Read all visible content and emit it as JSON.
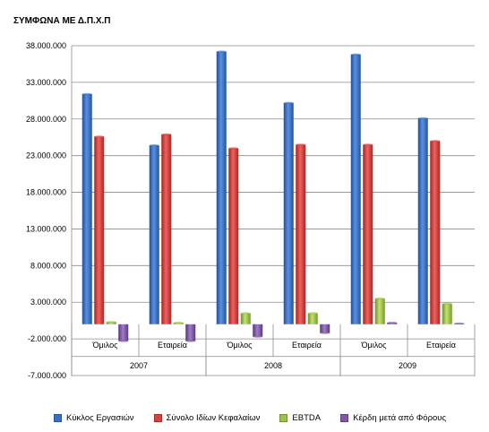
{
  "title": "ΣΥΜΦΩΝΑ ΜΕ Δ.Π.Χ.Π",
  "chart_data": {
    "type": "bar",
    "title": "ΣΥΜΦΩΝΑ ΜΕ Δ.Π.Χ.Π",
    "categories": [
      "Όμιλος",
      "Εταιρεία",
      "Όμιλος",
      "Εταιρεία",
      "Όμιλος",
      "Εταιρεία"
    ],
    "groups": [
      {
        "label": "2007",
        "span": [
          0,
          1
        ]
      },
      {
        "label": "2008",
        "span": [
          2,
          3
        ]
      },
      {
        "label": "2009",
        "span": [
          4,
          5
        ]
      }
    ],
    "series": [
      {
        "name": "Κύκλος Εργασιών",
        "color": "#3a6fc4",
        "values": [
          31400000,
          24400000,
          37200000,
          30200000,
          36800000,
          28100000
        ]
      },
      {
        "name": "Σύνολο Ιδίων Κεφαλαίων",
        "color": "#d8403c",
        "values": [
          25600000,
          25900000,
          24000000,
          24500000,
          24500000,
          25000000
        ]
      },
      {
        "name": "EBTDA",
        "color": "#9bc24a",
        "values": [
          300000,
          200000,
          1500000,
          1500000,
          3500000,
          2800000
        ]
      },
      {
        "name": "Κέρδη μετά από Φόρους",
        "color": "#7f5aa2",
        "values": [
          -2300000,
          -2300000,
          -1700000,
          -1200000,
          200000,
          100000
        ]
      }
    ],
    "ylim": [
      -7000000,
      38000000
    ],
    "yticks": [
      "38.000.000",
      "33.000.000",
      "28.000.000",
      "23.000.000",
      "18.000.000",
      "13.000.000",
      "8.000.000",
      "3.000.000",
      "-2.000.000",
      "-7.000.000"
    ],
    "grid": true,
    "legend": "bottom"
  }
}
